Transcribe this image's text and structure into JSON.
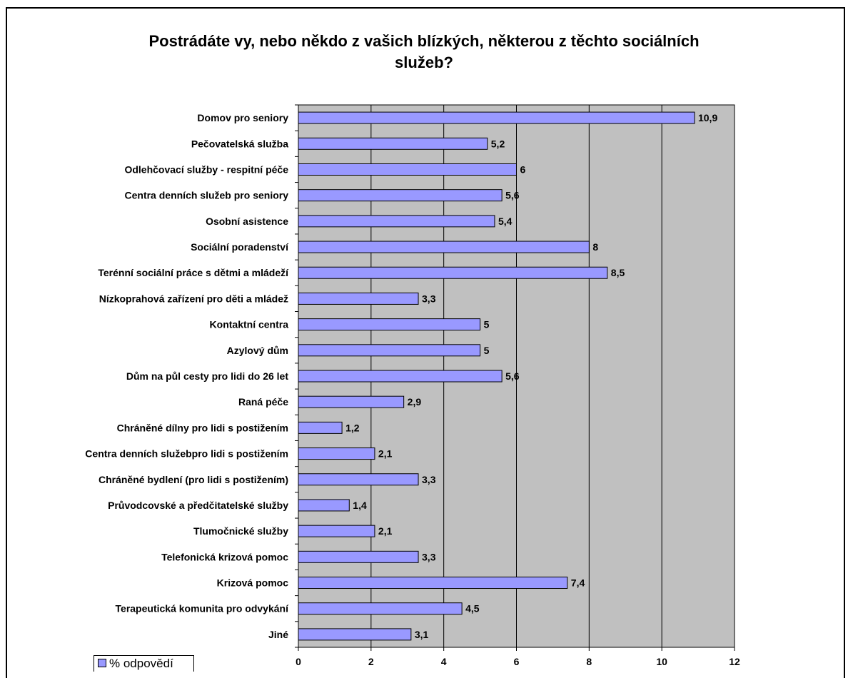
{
  "chart_data": {
    "type": "bar",
    "orientation": "horizontal",
    "title": [
      "Postrádáte vy, nebo někdo z vašich blízkých, některou z těchto sociálních",
      "služeb?"
    ],
    "categories": [
      "Domov pro seniory",
      "Pečovatelská služba",
      "Odlehčovací služby - respitní péče",
      "Centra denních služeb pro seniory",
      "Osobní asistence",
      "Sociální poradenství",
      "Terénní sociální práce s dětmi a mládeží",
      "Nízkoprahová zařízení pro děti a mládež",
      "Kontaktní centra",
      "Azylový dům",
      "Dům na půl cesty pro lidi do 26 let",
      "Raná péče",
      "Chráněné dílny pro lidi s postižením",
      "Centra denních služebpro lidi s postižením",
      "Chráněné bydlení (pro lidi s postižením)",
      "Průvodcovské a předčitatelské služby",
      "Tlumočnické služby",
      "Telefonická krizová pomoc",
      "Krizová pomoc",
      "Terapeutická komunita pro odvykání",
      "Jiné"
    ],
    "series": [
      {
        "name": "% odpovědí",
        "values": [
          10.9,
          5.2,
          6,
          5.6,
          5.4,
          8,
          8.5,
          3.3,
          5,
          5,
          5.6,
          2.9,
          1.2,
          2.1,
          3.3,
          1.4,
          2.1,
          3.3,
          7.4,
          4.5,
          3.1
        ],
        "value_labels": [
          "10,9",
          "5,2",
          "6",
          "5,6",
          "5,4",
          "8",
          "8,5",
          "3,3",
          "5",
          "5",
          "5,6",
          "2,9",
          "1,2",
          "2,1",
          "3,3",
          "1,4",
          "2,1",
          "3,3",
          "7,4",
          "4,5",
          "3,1"
        ],
        "color": "#9999ff"
      }
    ],
    "xlim": [
      0,
      12
    ],
    "xticks": [
      0,
      2,
      4,
      6,
      8,
      10,
      12
    ],
    "grid": true,
    "plot_background": "#c0c0c0",
    "legend_position": "bottom-left"
  }
}
